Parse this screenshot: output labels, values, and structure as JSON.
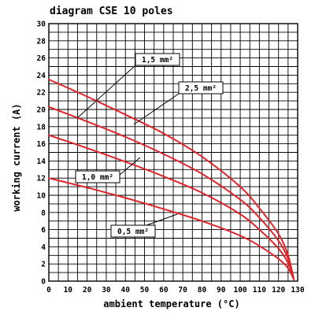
{
  "chart_data": {
    "type": "line",
    "title": "diagram CSE 10 poles",
    "xlabel": "ambient temperature (°C)",
    "ylabel": "working current (A)",
    "xlim": [
      0,
      130
    ],
    "ylim": [
      0,
      30
    ],
    "x_ticks": [
      "0",
      "10",
      "20",
      "30",
      "40",
      "50",
      "60",
      "70",
      "80",
      "90",
      "100",
      "110",
      "120",
      "130"
    ],
    "y_ticks": [
      "0",
      "2",
      "4",
      "6",
      "8",
      "10",
      "12",
      "14",
      "16",
      "18",
      "20",
      "22",
      "24",
      "26",
      "28",
      "30"
    ],
    "grid": true,
    "series": [
      {
        "name": "1,5 mm²",
        "x": [
          0,
          20,
          40,
          60,
          80,
          100,
          110,
          120,
          125,
          128
        ],
        "y": [
          23.5,
          21.5,
          19.4,
          17.2,
          14.5,
          11.0,
          8.5,
          5.5,
          3.0,
          0.2
        ]
      },
      {
        "name": "2,5 mm²",
        "x": [
          0,
          20,
          40,
          60,
          80,
          100,
          110,
          120,
          125,
          128
        ],
        "y": [
          20.3,
          18.6,
          16.8,
          14.8,
          12.5,
          9.5,
          7.4,
          4.7,
          2.6,
          0.2
        ]
      },
      {
        "name": "1,0 mm²",
        "x": [
          0,
          20,
          40,
          60,
          80,
          100,
          110,
          120,
          125,
          128
        ],
        "y": [
          17.0,
          15.5,
          13.9,
          12.2,
          10.3,
          7.8,
          6.0,
          3.8,
          2.1,
          0.2
        ]
      },
      {
        "name": "0,5 mm²",
        "x": [
          0,
          20,
          40,
          60,
          80,
          100,
          110,
          120,
          125,
          128
        ],
        "y": [
          12.0,
          10.9,
          9.7,
          8.4,
          7.0,
          5.3,
          4.1,
          2.6,
          1.5,
          0.2
        ]
      }
    ]
  }
}
